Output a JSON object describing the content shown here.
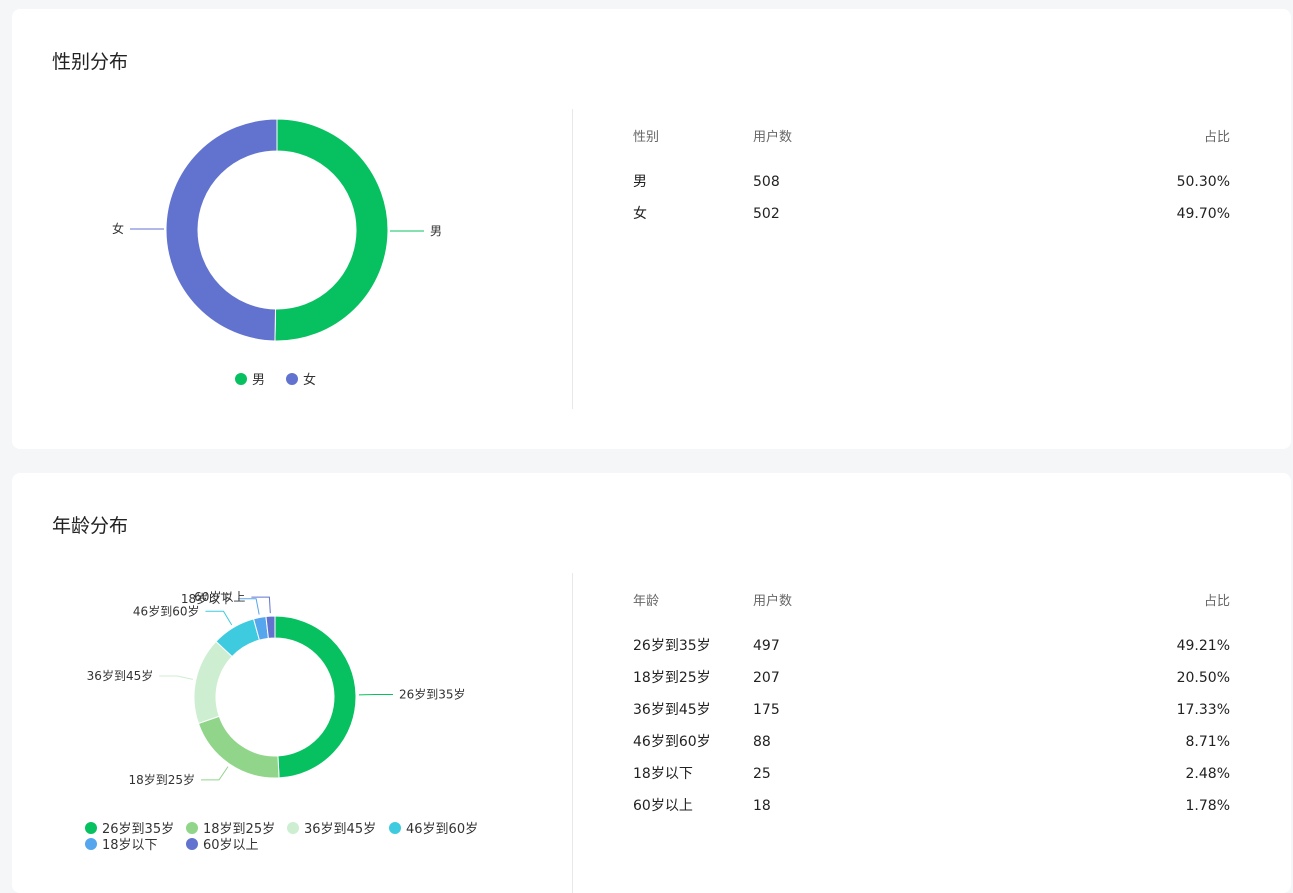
{
  "gender_section": {
    "title": "性别分布",
    "table": {
      "headers": [
        "性别",
        "用户数",
        "占比"
      ],
      "rows": [
        {
          "label": "男",
          "count": "508",
          "ratio": "50.30%"
        },
        {
          "label": "女",
          "count": "502",
          "ratio": "49.70%"
        }
      ]
    }
  },
  "age_section": {
    "title": "年龄分布",
    "table": {
      "headers": [
        "年龄",
        "用户数",
        "占比"
      ],
      "rows": [
        {
          "label": "26岁到35岁",
          "count": "497",
          "ratio": "49.21%"
        },
        {
          "label": "18岁到25岁",
          "count": "207",
          "ratio": "20.50%"
        },
        {
          "label": "36岁到45岁",
          "count": "175",
          "ratio": "17.33%"
        },
        {
          "label": "46岁到60岁",
          "count": "88",
          "ratio": "8.71%"
        },
        {
          "label": "18岁以下",
          "count": "25",
          "ratio": "2.48%"
        },
        {
          "label": "60岁以上",
          "count": "18",
          "ratio": "1.78%"
        }
      ]
    }
  },
  "chart_data": [
    {
      "type": "pie",
      "donut": true,
      "legend_position": "bottom",
      "categories": [
        "男",
        "女"
      ],
      "values": [
        508,
        502
      ],
      "colors": [
        "#07c160",
        "#6173cf"
      ]
    },
    {
      "type": "pie",
      "donut": true,
      "legend_position": "bottom",
      "categories": [
        "26岁到35岁",
        "18岁到25岁",
        "36岁到45岁",
        "46岁到60岁",
        "18岁以下",
        "60岁以上"
      ],
      "values": [
        497,
        207,
        175,
        88,
        25,
        18
      ],
      "colors": [
        "#07c160",
        "#90d58a",
        "#cdeed0",
        "#3ecbe0",
        "#56a6ee",
        "#6173cf"
      ]
    }
  ]
}
